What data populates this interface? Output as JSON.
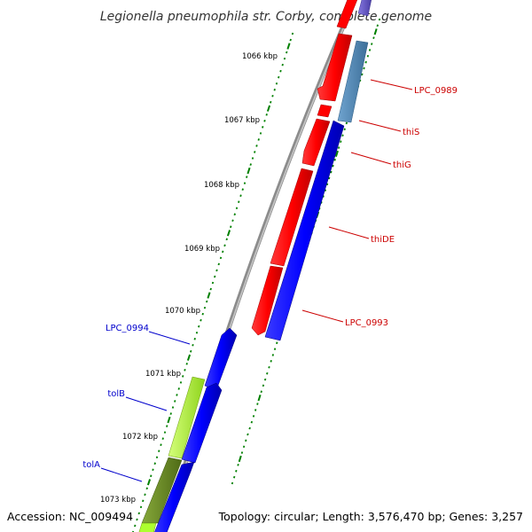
{
  "title": "Legionella pneumophila str. Corby, complete genome",
  "footer": {
    "accession": "Accession: NC_009494",
    "summary": "Topology: circular; Length: 3,576,470 bp; Genes: 3,257"
  },
  "scale_labels": [
    "1066 kbp",
    "1067 kbp",
    "1068 kbp",
    "1069 kbp",
    "1070 kbp",
    "1071 kbp",
    "1072 kbp",
    "1073 kbp"
  ],
  "gene_labels": {
    "forward": [
      "LPC_0989",
      "thiS",
      "thiG",
      "thiDE",
      "LPC_0993"
    ],
    "reverse": [
      "LPC_0994",
      "tolB",
      "tolA"
    ]
  },
  "colors": {
    "backbone": "#888888",
    "forward_strand": "#ff0000",
    "forward_blue": "#0000ff",
    "steelblue": "#4f86b5",
    "purple": "#6a5acd",
    "reverse_blue": "#0000ff",
    "lime": "#adff2f",
    "olive": "#6b8e23",
    "tick": "#008000",
    "forward_label": "#cc0000",
    "reverse_label": "#0000cc"
  }
}
